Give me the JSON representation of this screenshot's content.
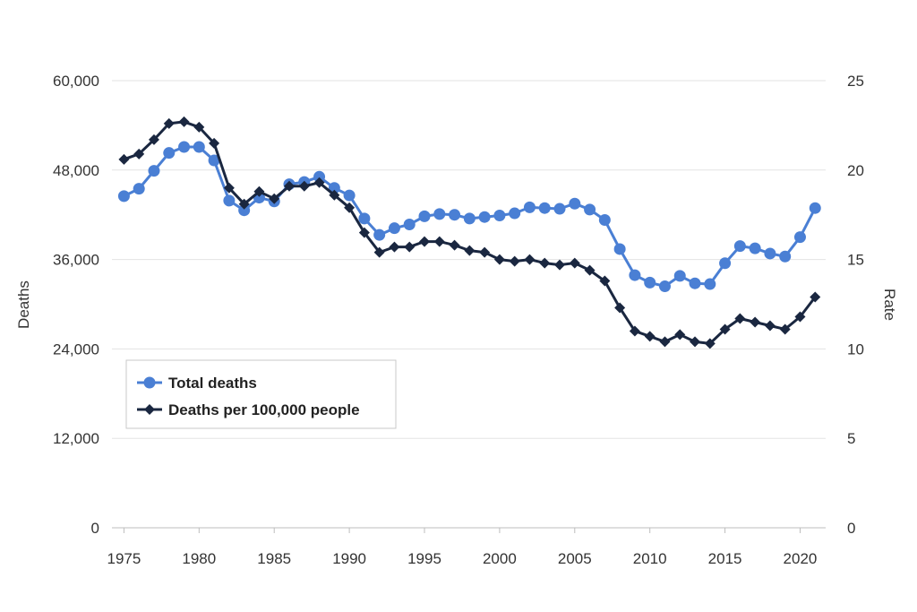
{
  "chart_data": {
    "type": "line",
    "x": [
      1975,
      1976,
      1977,
      1978,
      1979,
      1980,
      1981,
      1982,
      1983,
      1984,
      1985,
      1986,
      1987,
      1988,
      1989,
      1990,
      1991,
      1992,
      1993,
      1994,
      1995,
      1996,
      1997,
      1998,
      1999,
      2000,
      2001,
      2002,
      2003,
      2004,
      2005,
      2006,
      2007,
      2008,
      2009,
      2010,
      2011,
      2012,
      2013,
      2014,
      2015,
      2016,
      2017,
      2018,
      2019,
      2020,
      2021
    ],
    "xticks": [
      1975,
      1980,
      1985,
      1990,
      1995,
      2000,
      2005,
      2010,
      2015,
      2020
    ],
    "xlim": [
      1974.2,
      2021.7
    ],
    "y_left": {
      "label": "Deaths",
      "lim": [
        0,
        60000
      ],
      "ticks": [
        0,
        12000,
        24000,
        36000,
        48000,
        60000
      ],
      "tick_labels": [
        "0",
        "12,000",
        "24,000",
        "36,000",
        "48,000",
        "60,000"
      ]
    },
    "y_right": {
      "label": "Rate",
      "lim": [
        0,
        25
      ],
      "ticks": [
        0,
        5,
        10,
        15,
        20,
        25
      ],
      "tick_labels": [
        "0",
        "5",
        "10",
        "15",
        "20",
        "25"
      ]
    },
    "grid": true,
    "legend_position": "lower-left",
    "series": [
      {
        "name": "Total deaths",
        "axis": "left",
        "color": "#4a7fd4",
        "marker": "circle",
        "values": [
          44500,
          45500,
          47900,
          50300,
          51100,
          51100,
          49300,
          43900,
          42600,
          44300,
          43800,
          46100,
          46400,
          47100,
          45600,
          44600,
          41500,
          39300,
          40200,
          40700,
          41800,
          42100,
          42000,
          41500,
          41700,
          41900,
          42200,
          43000,
          42900,
          42800,
          43500,
          42700,
          41300,
          37400,
          33900,
          32900,
          32400,
          33800,
          32800,
          32700,
          35500,
          37800,
          37500,
          36800,
          36400,
          39000,
          42900
        ]
      },
      {
        "name": "Deaths per 100,000 people",
        "axis": "right",
        "color": "#1a2740",
        "marker": "diamond",
        "values": [
          20.6,
          20.9,
          21.7,
          22.6,
          22.7,
          22.4,
          21.5,
          19.0,
          18.1,
          18.8,
          18.4,
          19.1,
          19.1,
          19.3,
          18.6,
          17.9,
          16.5,
          15.4,
          15.7,
          15.7,
          16.0,
          16.0,
          15.8,
          15.5,
          15.4,
          15.0,
          14.9,
          15.0,
          14.8,
          14.7,
          14.8,
          14.4,
          13.8,
          12.3,
          11.0,
          10.7,
          10.4,
          10.8,
          10.4,
          10.3,
          11.1,
          11.7,
          11.5,
          11.3,
          11.1,
          11.8,
          12.9
        ]
      }
    ]
  }
}
